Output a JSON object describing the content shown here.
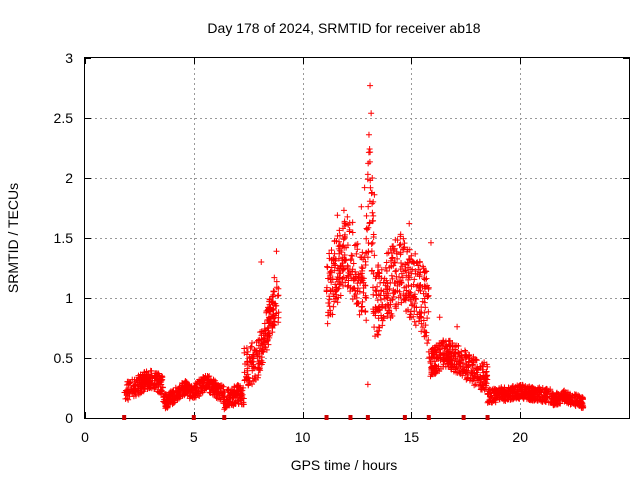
{
  "chart_data": {
    "type": "scatter",
    "title": "Day 178 of 2024, SRMTID for receiver ab18",
    "xlabel": "GPS time / hours",
    "ylabel": "SRMTID / TECUs",
    "xlim": [
      0,
      25
    ],
    "ylim": [
      0,
      3
    ],
    "xticks": [
      0,
      5,
      10,
      15,
      20
    ],
    "yticks": [
      0,
      0.5,
      1,
      1.5,
      2,
      2.5,
      3
    ],
    "ytick_labels": [
      "0",
      "0.5",
      "1",
      "1.5",
      "2",
      "2.5",
      "3"
    ],
    "grid": true,
    "marker": "+",
    "colors": {
      "points": "#ff0000",
      "gaps": "#cc0000",
      "grid": "#999999",
      "axes": "#000000"
    },
    "segments": [
      {
        "x": [
          1.8,
          3.6
        ],
        "base": 0.22,
        "spread": 0.08,
        "peak_x": 3.0,
        "peak_y": 0.33
      },
      {
        "x": [
          3.6,
          5.0
        ],
        "base": 0.14,
        "spread": 0.06,
        "peak_x": 4.6,
        "peak_y": 0.25
      },
      {
        "x": [
          5.0,
          6.4
        ],
        "base": 0.18,
        "spread": 0.07,
        "peak_x": 5.6,
        "peak_y": 0.3
      },
      {
        "x": [
          6.4,
          7.3
        ],
        "base": 0.15,
        "spread": 0.08,
        "peak_x": 7.0,
        "peak_y": 0.2
      },
      {
        "x": [
          7.3,
          8.9
        ],
        "base": 0.45,
        "spread": 0.18,
        "peak_x": 8.8,
        "peak_y": 1.0
      },
      {
        "x": [
          11.1,
          12.9
        ],
        "base": 0.95,
        "spread": 0.3,
        "peak_x": 12.0,
        "peak_y": 1.4
      },
      {
        "x": [
          12.9,
          13.3
        ],
        "base": 1.0,
        "spread": 0.5,
        "peak_x": 13.1,
        "peak_y": 2.0
      },
      {
        "x": [
          13.3,
          15.8
        ],
        "base": 0.85,
        "spread": 0.3,
        "peak_x": 14.5,
        "peak_y": 1.25
      },
      {
        "x": [
          15.8,
          18.5
        ],
        "base": 0.35,
        "spread": 0.12,
        "peak_x": 16.6,
        "peak_y": 0.55
      },
      {
        "x": [
          18.5,
          21.5
        ],
        "base": 0.17,
        "spread": 0.06,
        "peak_x": 20.0,
        "peak_y": 0.22
      },
      {
        "x": [
          21.5,
          22.9
        ],
        "base": 0.13,
        "spread": 0.05,
        "peak_x": 22.0,
        "peak_y": 0.18
      }
    ],
    "outliers": [
      {
        "x": 8.1,
        "y": 1.3
      },
      {
        "x": 8.7,
        "y": 1.17
      },
      {
        "x": 8.8,
        "y": 1.39
      },
      {
        "x": 11.6,
        "y": 1.69
      },
      {
        "x": 11.9,
        "y": 1.73
      },
      {
        "x": 12.3,
        "y": 1.63
      },
      {
        "x": 12.7,
        "y": 1.76
      },
      {
        "x": 12.85,
        "y": 1.92
      },
      {
        "x": 13.0,
        "y": 2.03
      },
      {
        "x": 13.05,
        "y": 2.36
      },
      {
        "x": 13.1,
        "y": 2.77
      },
      {
        "x": 13.15,
        "y": 2.54
      },
      {
        "x": 13.2,
        "y": 2.0
      },
      {
        "x": 13.3,
        "y": 1.86
      },
      {
        "x": 14.9,
        "y": 1.62
      },
      {
        "x": 15.9,
        "y": 1.46
      },
      {
        "x": 16.3,
        "y": 0.84
      },
      {
        "x": 17.1,
        "y": 0.76
      },
      {
        "x": 13.0,
        "y": 0.28
      }
    ],
    "gap_marks_x": [
      1.8,
      5.0,
      6.4,
      11.1,
      12.2,
      13.0,
      14.7,
      15.8,
      17.4,
      18.5
    ]
  }
}
